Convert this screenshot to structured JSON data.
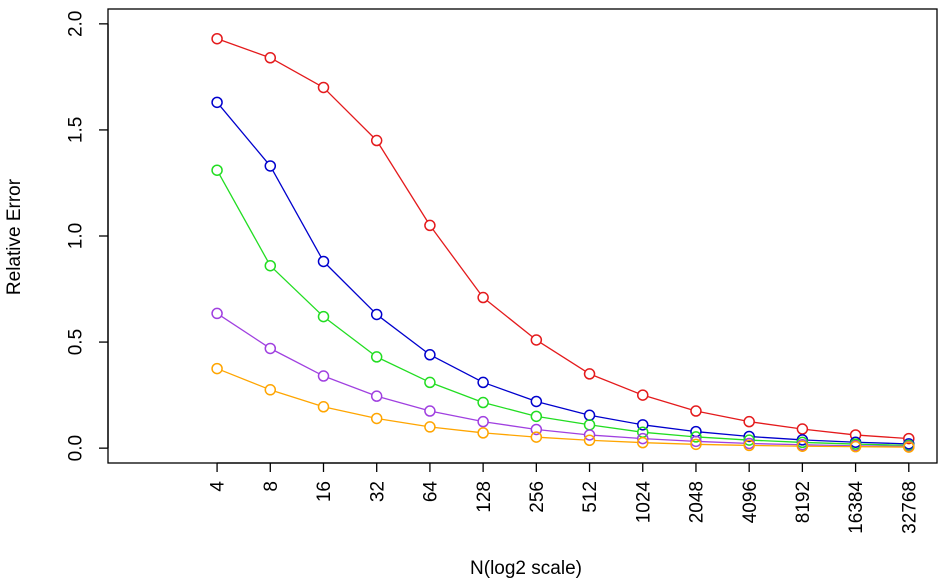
{
  "chart_data": {
    "type": "line",
    "title": "",
    "xlabel": "N(log2 scale)",
    "ylabel": "Relative Error",
    "x_scale": "log2",
    "x": [
      4,
      8,
      16,
      32,
      64,
      128,
      256,
      512,
      1024,
      2048,
      4096,
      8192,
      16384,
      32768
    ],
    "x_tick_labels": [
      "4",
      "8",
      "16",
      "32",
      "64",
      "128",
      "256",
      "512",
      "1024",
      "2048",
      "4096",
      "8192",
      "16384",
      "32768"
    ],
    "xlim": [
      1,
      32768
    ],
    "ylim": [
      0,
      2.0
    ],
    "y_ticks": [
      0.0,
      0.5,
      1.0,
      1.5,
      2.0
    ],
    "y_tick_labels": [
      "0.0",
      "0.5",
      "1.0",
      "1.5",
      "2.0"
    ],
    "grid": false,
    "legend": "none",
    "series": [
      {
        "color": "#e41a1c",
        "values": [
          1.93,
          1.84,
          1.7,
          1.45,
          1.05,
          0.71,
          0.51,
          0.35,
          0.25,
          0.175,
          0.125,
          0.09,
          0.062,
          0.045
        ]
      },
      {
        "color": "#0000cd",
        "values": [
          1.63,
          1.33,
          0.88,
          0.63,
          0.44,
          0.31,
          0.22,
          0.155,
          0.11,
          0.078,
          0.055,
          0.039,
          0.028,
          0.02
        ]
      },
      {
        "color": "#22dd22",
        "values": [
          1.31,
          0.86,
          0.62,
          0.43,
          0.31,
          0.215,
          0.15,
          0.11,
          0.075,
          0.053,
          0.038,
          0.027,
          0.019,
          0.013
        ]
      },
      {
        "color": "#a040e0",
        "values": [
          0.635,
          0.47,
          0.34,
          0.245,
          0.175,
          0.125,
          0.088,
          0.062,
          0.045,
          0.032,
          0.022,
          0.016,
          0.011,
          0.008
        ]
      },
      {
        "color": "#ffa500",
        "values": [
          0.375,
          0.275,
          0.195,
          0.14,
          0.1,
          0.072,
          0.052,
          0.037,
          0.026,
          0.018,
          0.013,
          0.009,
          0.007,
          0.005
        ]
      }
    ]
  }
}
